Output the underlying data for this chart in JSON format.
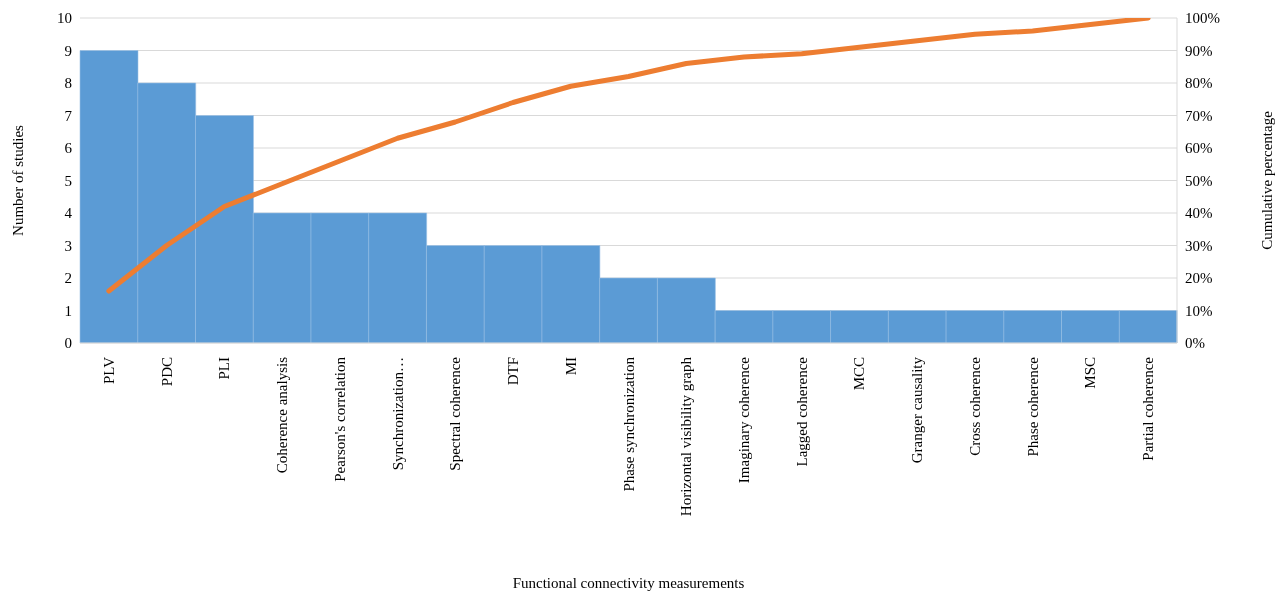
{
  "chart_data": {
    "type": "bar",
    "xlabel": "Functional connectivity measurements",
    "ylabel": "Number of studies",
    "y2label": "Cumulative percentage",
    "categories": [
      "PLV",
      "PDC",
      "PLI",
      "Coherence analysis",
      "Pearson's correlation",
      "Synchronization…",
      "Spectral coherence",
      "DTF",
      "MI",
      "Phase synchronization",
      "Horizontal visibility graph",
      "Imaginary coherence",
      "Lagged coherence",
      "MCC",
      "Granger causality",
      "Cross coherence",
      "Phase coherence",
      "MSC",
      "Partial coherence"
    ],
    "series": [
      {
        "color": "#5b9bd5",
        "values": [
          9,
          8,
          7,
          4,
          4,
          4,
          3,
          3,
          3,
          2,
          2,
          1,
          1,
          1,
          1,
          1,
          1,
          1,
          1
        ]
      },
      {
        "type": "line",
        "axis": "y2",
        "color": "#ed7d31",
        "values": [
          16,
          30,
          42,
          49,
          56,
          63,
          68,
          74,
          79,
          82,
          86,
          88,
          89,
          91,
          93,
          95,
          96,
          98,
          100
        ]
      }
    ],
    "ylim": [
      0,
      10
    ],
    "yticks": [
      0,
      1,
      2,
      3,
      4,
      5,
      6,
      7,
      8,
      9,
      10
    ],
    "y2lim": [
      0,
      100
    ],
    "y2ticks": [
      {
        "value": 0,
        "label": "0%"
      },
      {
        "value": 10,
        "label": "10%"
      },
      {
        "value": 20,
        "label": "20%"
      },
      {
        "value": 30,
        "label": "30%"
      },
      {
        "value": 40,
        "label": "40%"
      },
      {
        "value": 50,
        "label": "50%"
      },
      {
        "value": 60,
        "label": "60%"
      },
      {
        "value": 70,
        "label": "70%"
      },
      {
        "value": 80,
        "label": "80%"
      },
      {
        "value": 90,
        "label": "90%"
      },
      {
        "value": 100,
        "label": "100%"
      }
    ],
    "grid": "y",
    "legend": false,
    "marker": "none",
    "line_style": "solid"
  }
}
